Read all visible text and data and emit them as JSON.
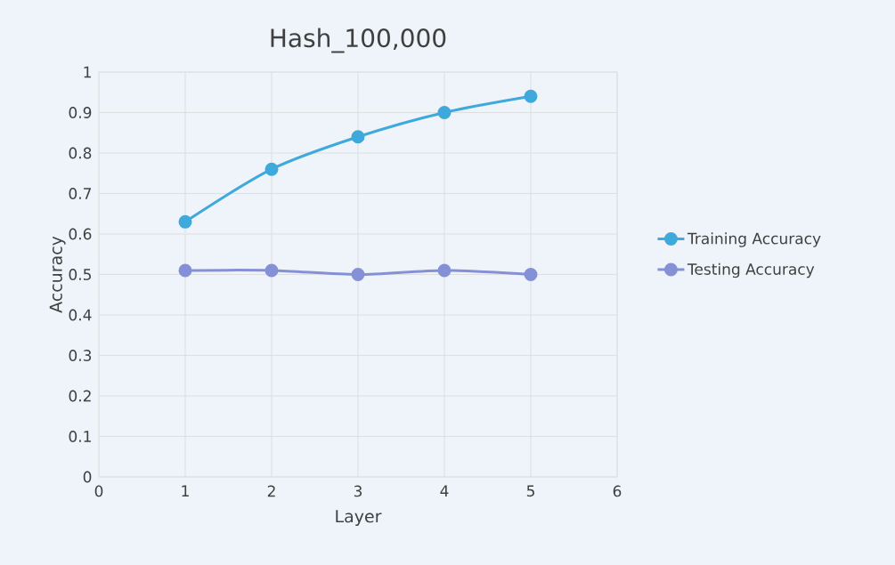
{
  "chart_data": {
    "type": "line",
    "title": "Hash_100,000",
    "xlabel": "Layer",
    "ylabel": "Accuracy",
    "x": [
      1,
      2,
      3,
      4,
      5
    ],
    "series": [
      {
        "name": "Training Accuracy",
        "color": "#3fa9dc",
        "values": [
          0.63,
          0.76,
          0.84,
          0.9,
          0.94
        ]
      },
      {
        "name": "Testing Accuracy",
        "color": "#8491d6",
        "values": [
          0.51,
          0.51,
          0.5,
          0.51,
          0.5
        ]
      }
    ],
    "xlim": [
      0,
      6
    ],
    "xticks": [
      0,
      1,
      2,
      3,
      4,
      5,
      6
    ],
    "ylim": [
      0,
      1
    ],
    "yticks": [
      0,
      0.1,
      0.2,
      0.3,
      0.4,
      0.5,
      0.6,
      0.7,
      0.8,
      0.9,
      1
    ],
    "grid": true,
    "legend": "right",
    "marker": "circle",
    "line_style": "solid"
  }
}
